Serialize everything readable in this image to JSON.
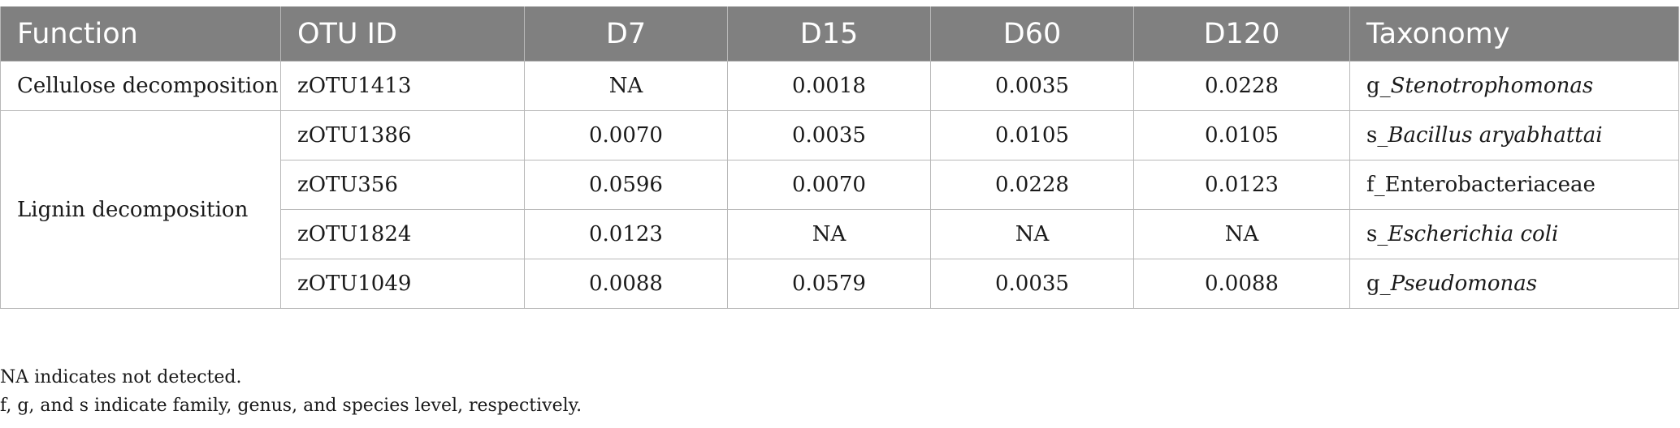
{
  "table": {
    "headers": {
      "function": "Function",
      "otu_id": "OTU ID",
      "d7": "D7",
      "d15": "D15",
      "d60": "D60",
      "d120": "D120",
      "taxonomy": "Taxonomy"
    },
    "groups": [
      {
        "function": "Cellulose decomposition",
        "rows": [
          {
            "otu": "zOTU1413",
            "d7": "NA",
            "d15": "0.0018",
            "d60": "0.0035",
            "d120": "0.0228",
            "tax_prefix": "g_",
            "tax_name": "Stenotrophomonas"
          }
        ]
      },
      {
        "function": "Lignin decomposition",
        "rows": [
          {
            "otu": "zOTU1386",
            "d7": "0.0070",
            "d15": "0.0035",
            "d60": "0.0105",
            "d120": "0.0105",
            "tax_prefix": "s_",
            "tax_name": "Bacillus aryabhattai"
          },
          {
            "otu": "zOTU356",
            "d7": "0.0596",
            "d15": "0.0070",
            "d60": "0.0228",
            "d120": "0.0123",
            "tax_prefix": "f_",
            "tax_name": "Enterobacteriaceae"
          },
          {
            "otu": "zOTU1824",
            "d7": "0.0123",
            "d15": "NA",
            "d60": "NA",
            "d120": "NA",
            "tax_prefix": "s_",
            "tax_name": "Escherichia coli"
          },
          {
            "otu": "zOTU1049",
            "d7": "0.0088",
            "d15": "0.0579",
            "d60": "0.0035",
            "d120": "0.0088",
            "tax_prefix": "g_",
            "tax_name": "Pseudomonas"
          }
        ]
      }
    ]
  },
  "notes": {
    "line1": "NA indicates not detected.",
    "line2": "f, g, and s indicate family, genus, and species level, respectively."
  }
}
